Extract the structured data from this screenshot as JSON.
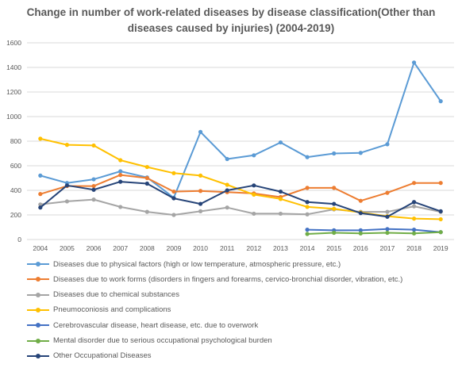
{
  "chart_data": {
    "type": "line",
    "title_lines": [
      "Change in number of work-related diseases by disease classification(Other than",
      "diseases caused by injuries) (2004-2019)"
    ],
    "x": [
      "2004",
      "2005",
      "2006",
      "2007",
      "2008",
      "2009",
      "2010",
      "2011",
      "2012",
      "2013",
      "2014",
      "2015",
      "2016",
      "2017",
      "2018",
      "2019"
    ],
    "ylim": [
      0,
      1600
    ],
    "yticks": [
      "0",
      "200",
      "400",
      "600",
      "800",
      "1000",
      "1200",
      "1400",
      "1600"
    ],
    "grid": true,
    "legend_position": "bottom",
    "series": [
      {
        "name": "Diseases due to physical factors (high or low temperature, atmospheric pressure, etc.)",
        "color": "#5B9BD5",
        "values": [
          520,
          460,
          490,
          555,
          505,
          340,
          875,
          655,
          685,
          790,
          670,
          700,
          705,
          775,
          1440,
          1125
        ]
      },
      {
        "name": "Diseases due to work forms (disorders in fingers and forearms, cervico-bronchial disorder, vibration, etc.)",
        "color": "#ED7D31",
        "values": [
          370,
          435,
          435,
          525,
          500,
          390,
          395,
          385,
          375,
          345,
          420,
          420,
          315,
          380,
          460,
          460
        ]
      },
      {
        "name": "Diseases due to chemical substances",
        "color": "#A5A5A5",
        "values": [
          285,
          310,
          325,
          265,
          225,
          200,
          230,
          260,
          210,
          210,
          205,
          245,
          225,
          225,
          270,
          225
        ]
      },
      {
        "name": "Pneumoconiosis and complications",
        "color": "#FFC000",
        "values": [
          820,
          770,
          765,
          645,
          590,
          540,
          520,
          445,
          365,
          330,
          265,
          250,
          220,
          190,
          170,
          165
        ]
      },
      {
        "name": "Cerebrovascular disease, heart disease, etc. due to overwork",
        "color": "#4472C4",
        "values": [
          null,
          null,
          null,
          null,
          null,
          null,
          null,
          null,
          null,
          null,
          80,
          75,
          75,
          85,
          80,
          60
        ]
      },
      {
        "name": "Mental disorder due to serious occupational psychological burden",
        "color": "#70AD47",
        "values": [
          null,
          null,
          null,
          null,
          null,
          null,
          null,
          null,
          null,
          null,
          45,
          55,
          50,
          55,
          50,
          60
        ]
      },
      {
        "name": "Other Occupational Diseases",
        "color": "#264478",
        "values": [
          260,
          440,
          405,
          470,
          455,
          335,
          290,
          400,
          440,
          390,
          305,
          290,
          215,
          185,
          305,
          230
        ]
      }
    ]
  }
}
